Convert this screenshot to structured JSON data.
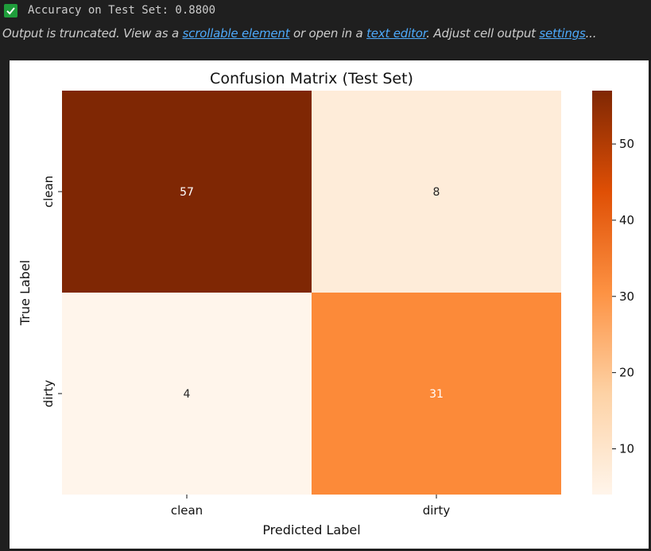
{
  "output": {
    "status_text": "Accuracy on Test Set: 0.8800",
    "truncated": {
      "prefix": "Output is truncated. View as a ",
      "link_scrollable": "scrollable element",
      "middle": " or open in a ",
      "link_editor": "text editor",
      "middle2": ". Adjust cell output ",
      "link_settings": "settings",
      "suffix": "..."
    }
  },
  "chart_data": {
    "type": "heatmap",
    "title": "Confusion Matrix (Test Set)",
    "xlabel": "Predicted Label",
    "ylabel": "True Label",
    "x_categories": [
      "clean",
      "dirty"
    ],
    "y_categories": [
      "clean",
      "dirty"
    ],
    "values": [
      [
        57,
        8
      ],
      [
        4,
        31
      ]
    ],
    "colormap": "Oranges",
    "colorbar": {
      "ticks": [
        10,
        20,
        30,
        40,
        50
      ],
      "range": [
        4,
        57
      ]
    }
  }
}
